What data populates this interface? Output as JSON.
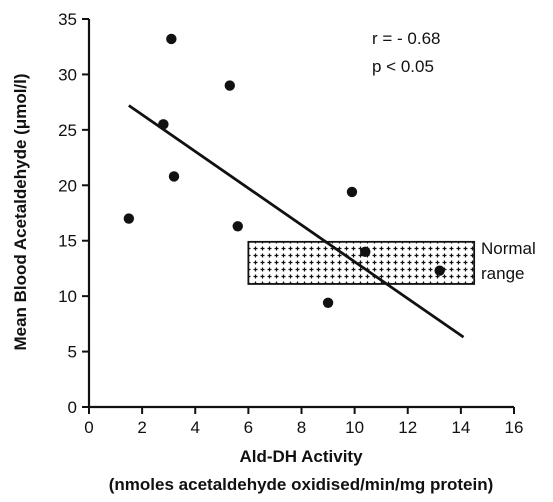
{
  "chart_data": {
    "type": "scatter",
    "xlabel": "Ald-DH Activity",
    "xlabel_sub": "(nmoles acetaldehyde oxidised/min/mg protein)",
    "ylabel": "Mean Blood Acetaldehyde (μmol/l)",
    "xlim": [
      0,
      16
    ],
    "ylim": [
      0,
      35
    ],
    "xticks": [
      0,
      2,
      4,
      6,
      8,
      10,
      12,
      14,
      16
    ],
    "yticks": [
      0,
      5,
      10,
      15,
      20,
      25,
      30,
      35
    ],
    "grid": false,
    "points": [
      {
        "x": 1.5,
        "y": 17.0
      },
      {
        "x": 2.8,
        "y": 25.5
      },
      {
        "x": 3.1,
        "y": 33.2
      },
      {
        "x": 3.2,
        "y": 20.8
      },
      {
        "x": 5.3,
        "y": 29.0
      },
      {
        "x": 5.6,
        "y": 16.3
      },
      {
        "x": 9.0,
        "y": 9.4
      },
      {
        "x": 9.9,
        "y": 19.4
      },
      {
        "x": 10.4,
        "y": 14.0
      },
      {
        "x": 13.2,
        "y": 12.3
      }
    ],
    "regression_line": {
      "x1": 1.5,
      "y1": 27.2,
      "x2": 14.1,
      "y2": 6.3
    },
    "normal_range": {
      "x1": 6.0,
      "x2": 14.5,
      "y1": 11.1,
      "y2": 14.9,
      "label_line1": "Normal",
      "label_line2": "range"
    },
    "annotation_r": "r = - 0.68",
    "annotation_p": "p < 0.05"
  }
}
